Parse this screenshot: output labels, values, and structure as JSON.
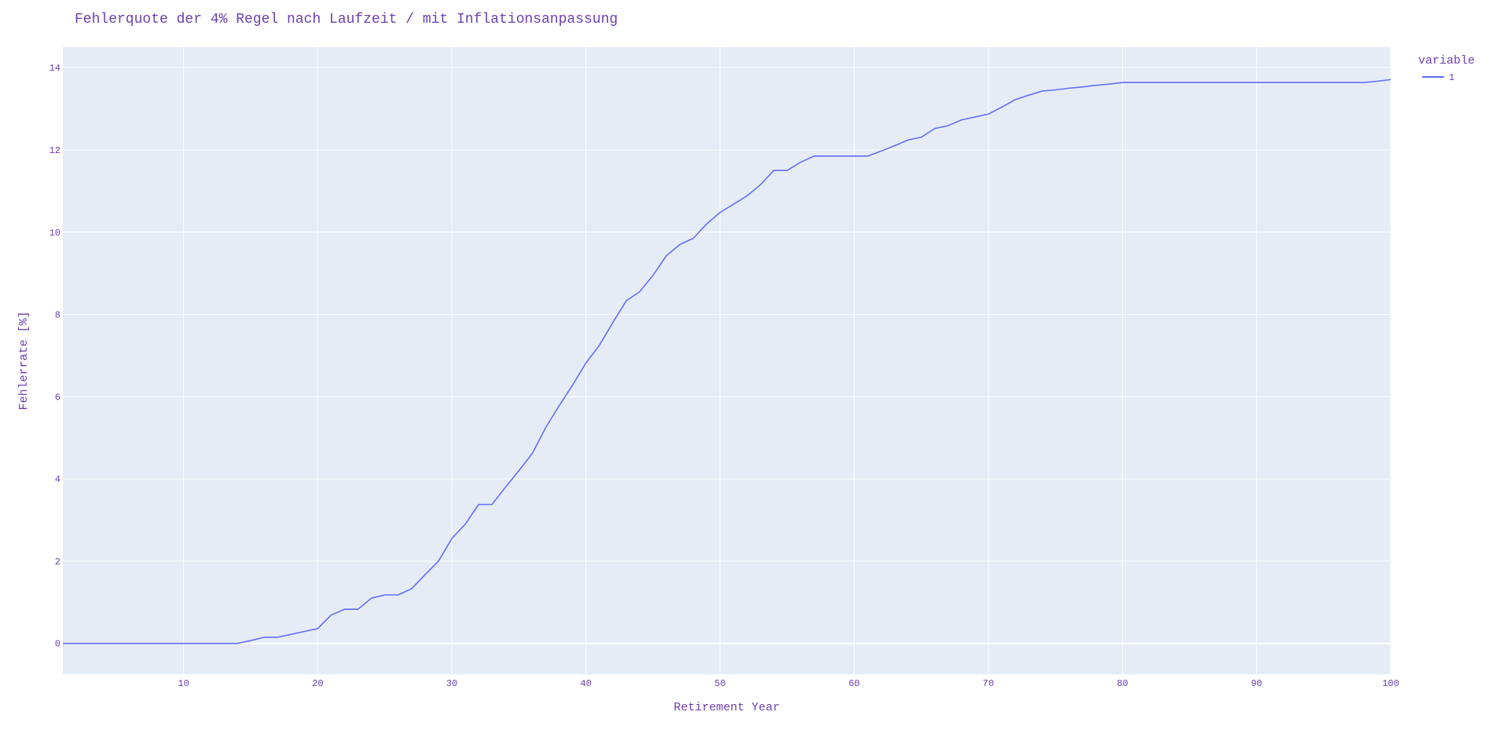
{
  "colors": {
    "text": "#6a3fb1",
    "plot_background": "#e5ecf6",
    "grid": "#ffffff",
    "line": "#636efa"
  },
  "chart_data": {
    "type": "line",
    "title": "Fehlerquote der 4% Regel nach Laufzeit / mit Inflationsanpassung",
    "xlabel": "Retirement Year",
    "ylabel": "Fehlerrate [%]",
    "xlim": [
      1,
      100
    ],
    "ylim": [
      -0.75,
      14.5
    ],
    "x_ticks": [
      10,
      20,
      30,
      40,
      50,
      60,
      70,
      80,
      90,
      100
    ],
    "y_ticks": [
      0,
      2,
      4,
      6,
      8,
      10,
      12,
      14
    ],
    "grid": true,
    "legend": {
      "title": "variable",
      "placement": "top-right outside",
      "entries": [
        "1"
      ]
    },
    "series": [
      {
        "name": "1",
        "x": [
          1,
          2,
          3,
          4,
          5,
          6,
          7,
          8,
          9,
          10,
          11,
          12,
          13,
          14,
          15,
          16,
          17,
          18,
          19,
          20,
          21,
          22,
          23,
          24,
          25,
          26,
          27,
          28,
          29,
          30,
          31,
          32,
          33,
          34,
          35,
          36,
          37,
          38,
          39,
          40,
          41,
          42,
          43,
          44,
          45,
          46,
          47,
          48,
          49,
          50,
          51,
          52,
          53,
          54,
          55,
          56,
          57,
          58,
          59,
          60,
          61,
          62,
          63,
          64,
          65,
          66,
          67,
          68,
          69,
          70,
          71,
          72,
          73,
          74,
          75,
          76,
          77,
          78,
          79,
          80,
          81,
          82,
          83,
          84,
          85,
          86,
          87,
          88,
          89,
          90,
          91,
          92,
          93,
          94,
          95,
          96,
          97,
          98,
          99,
          100
        ],
        "y": [
          0,
          0,
          0,
          0,
          0,
          0,
          0,
          0,
          0,
          0,
          0,
          0,
          0,
          0,
          0.07,
          0.15,
          0.15,
          0.22,
          0.29,
          0.36,
          0.69,
          0.83,
          0.83,
          1.1,
          1.18,
          1.18,
          1.33,
          1.67,
          2.0,
          2.55,
          2.9,
          3.38,
          3.38,
          3.8,
          4.2,
          4.62,
          5.25,
          5.78,
          6.28,
          6.82,
          7.25,
          7.8,
          8.33,
          8.55,
          8.95,
          9.43,
          9.7,
          9.85,
          10.2,
          10.48,
          10.68,
          10.88,
          11.15,
          11.5,
          11.5,
          11.7,
          11.85,
          11.85,
          11.85,
          11.85,
          11.85,
          11.97,
          12.1,
          12.24,
          12.31,
          12.52,
          12.59,
          12.73,
          12.8,
          12.87,
          13.04,
          13.22,
          13.33,
          13.43,
          13.46,
          13.5,
          13.53,
          13.57,
          13.6,
          13.64,
          13.64,
          13.64,
          13.64,
          13.64,
          13.64,
          13.64,
          13.64,
          13.64,
          13.64,
          13.64,
          13.64,
          13.64,
          13.64,
          13.64,
          13.64,
          13.64,
          13.64,
          13.64,
          13.67,
          13.71
        ]
      }
    ]
  }
}
